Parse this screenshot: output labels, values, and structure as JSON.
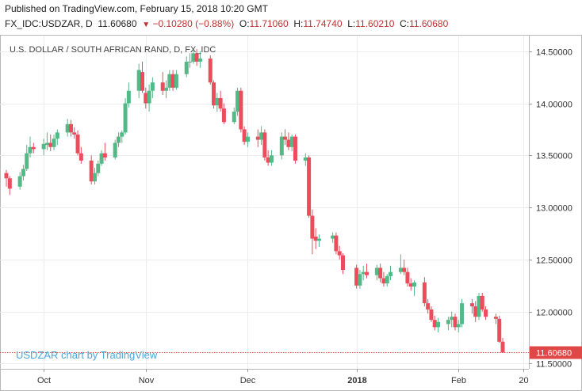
{
  "header": {
    "published": "Published on TradingView.com, February 15, 2018 10:20 GMT",
    "symbol": "FX_IDC:USDZAR, D",
    "last": "11.60680",
    "change": "−0.10280 (−0.88%)",
    "o_label": "O:",
    "o_value": "11.71060",
    "h_label": "H:",
    "h_value": "11.74740",
    "l_label": "L:",
    "l_value": "11.60210",
    "c_label": "C:",
    "c_value": "11.60680"
  },
  "colors": {
    "up": "#53b987",
    "down": "#eb4d5c",
    "last_tag": "#e04848",
    "watermark": "#4aa8d8"
  },
  "chart_data": {
    "type": "candlestick",
    "title": "U.S. DOLLAR / SOUTH AFRICAN RAND, D, FX_IDC",
    "watermark": "USDZAR chart by TradingView",
    "last_price_label": "11.60680",
    "last_price": 11.6068,
    "ylim": [
      11.45,
      14.65
    ],
    "yticks": [
      "14.50000",
      "14.00000",
      "13.50000",
      "13.00000",
      "12.50000",
      "12.00000",
      "11.50000"
    ],
    "ytick_values": [
      14.5,
      14.0,
      13.5,
      13.0,
      12.5,
      12.0,
      11.5
    ],
    "xticks": [
      {
        "label": "Oct",
        "bold": false,
        "date": "2017-10-02"
      },
      {
        "label": "Nov",
        "bold": false,
        "date": "2017-11-01"
      },
      {
        "label": "Dec",
        "bold": false,
        "date": "2017-12-01"
      },
      {
        "label": "2018",
        "bold": true,
        "date": "2018-01-02"
      },
      {
        "label": "Feb",
        "bold": false,
        "date": "2018-02-01"
      },
      {
        "label": "20",
        "bold": false,
        "date": "2018-02-20"
      }
    ],
    "candles": [
      {
        "date": "2017-09-21",
        "o": 13.33,
        "h": 13.36,
        "l": 13.2,
        "c": 13.28
      },
      {
        "date": "2017-09-22",
        "o": 13.28,
        "h": 13.3,
        "l": 13.12,
        "c": 13.18
      },
      {
        "date": "2017-09-25",
        "o": 13.2,
        "h": 13.34,
        "l": 13.17,
        "c": 13.3
      },
      {
        "date": "2017-09-26",
        "o": 13.3,
        "h": 13.41,
        "l": 13.26,
        "c": 13.37
      },
      {
        "date": "2017-09-27",
        "o": 13.37,
        "h": 13.6,
        "l": 13.35,
        "c": 13.52
      },
      {
        "date": "2017-09-28",
        "o": 13.52,
        "h": 13.68,
        "l": 13.48,
        "c": 13.58
      },
      {
        "date": "2017-09-29",
        "o": 13.58,
        "h": 13.62,
        "l": 13.52,
        "c": 13.56
      },
      {
        "date": "2017-10-02",
        "o": 13.56,
        "h": 13.66,
        "l": 13.5,
        "c": 13.61
      },
      {
        "date": "2017-10-03",
        "o": 13.6,
        "h": 13.72,
        "l": 13.55,
        "c": 13.62
      },
      {
        "date": "2017-10-04",
        "o": 13.62,
        "h": 13.7,
        "l": 13.54,
        "c": 13.58
      },
      {
        "date": "2017-10-05",
        "o": 13.58,
        "h": 13.7,
        "l": 13.55,
        "c": 13.66
      },
      {
        "date": "2017-10-06",
        "o": 13.66,
        "h": 13.75,
        "l": 13.6,
        "c": 13.72
      },
      {
        "date": "2017-10-09",
        "o": 13.72,
        "h": 13.85,
        "l": 13.68,
        "c": 13.8
      },
      {
        "date": "2017-10-10",
        "o": 13.8,
        "h": 13.84,
        "l": 13.68,
        "c": 13.72
      },
      {
        "date": "2017-10-11",
        "o": 13.72,
        "h": 13.77,
        "l": 13.66,
        "c": 13.7
      },
      {
        "date": "2017-10-12",
        "o": 13.7,
        "h": 13.74,
        "l": 13.5,
        "c": 13.52
      },
      {
        "date": "2017-10-13",
        "o": 13.52,
        "h": 13.58,
        "l": 13.42,
        "c": 13.45
      },
      {
        "date": "2017-10-16",
        "o": 13.45,
        "h": 13.5,
        "l": 13.22,
        "c": 13.25
      },
      {
        "date": "2017-10-17",
        "o": 13.25,
        "h": 13.38,
        "l": 13.22,
        "c": 13.33
      },
      {
        "date": "2017-10-18",
        "o": 13.33,
        "h": 13.45,
        "l": 13.3,
        "c": 13.42
      },
      {
        "date": "2017-10-19",
        "o": 13.42,
        "h": 13.55,
        "l": 13.4,
        "c": 13.52
      },
      {
        "date": "2017-10-20",
        "o": 13.52,
        "h": 13.62,
        "l": 13.45,
        "c": 13.48
      },
      {
        "date": "2017-10-23",
        "o": 13.48,
        "h": 13.65,
        "l": 13.46,
        "c": 13.62
      },
      {
        "date": "2017-10-24",
        "o": 13.62,
        "h": 13.72,
        "l": 13.58,
        "c": 13.68
      },
      {
        "date": "2017-10-25",
        "o": 13.68,
        "h": 13.74,
        "l": 13.62,
        "c": 13.72
      },
      {
        "date": "2017-10-26",
        "o": 13.72,
        "h": 14.05,
        "l": 13.7,
        "c": 14.0
      },
      {
        "date": "2017-10-27",
        "o": 14.0,
        "h": 14.2,
        "l": 13.96,
        "c": 14.12
      },
      {
        "date": "2017-10-30",
        "o": 14.12,
        "h": 14.38,
        "l": 14.05,
        "c": 14.32
      },
      {
        "date": "2017-10-31",
        "o": 14.3,
        "h": 14.4,
        "l": 14.1,
        "c": 14.12
      },
      {
        "date": "2017-11-01",
        "o": 14.1,
        "h": 14.15,
        "l": 13.95,
        "c": 14.0
      },
      {
        "date": "2017-11-02",
        "o": 14.0,
        "h": 14.18,
        "l": 13.92,
        "c": 14.12
      },
      {
        "date": "2017-11-03",
        "o": 14.12,
        "h": 14.25,
        "l": 14.05,
        "c": 14.2
      },
      {
        "date": "2017-11-06",
        "o": 14.2,
        "h": 14.3,
        "l": 14.08,
        "c": 14.12
      },
      {
        "date": "2017-11-07",
        "o": 14.12,
        "h": 14.22,
        "l": 14.05,
        "c": 14.15
      },
      {
        "date": "2017-11-08",
        "o": 14.15,
        "h": 14.32,
        "l": 14.12,
        "c": 14.28
      },
      {
        "date": "2017-11-09",
        "o": 14.28,
        "h": 14.32,
        "l": 14.12,
        "c": 14.15
      },
      {
        "date": "2017-11-10",
        "o": 14.15,
        "h": 14.32,
        "l": 14.13,
        "c": 14.28
      },
      {
        "date": "2017-11-13",
        "o": 14.28,
        "h": 14.45,
        "l": 14.25,
        "c": 14.4
      },
      {
        "date": "2017-11-14",
        "o": 14.4,
        "h": 14.48,
        "l": 14.34,
        "c": 14.4
      },
      {
        "date": "2017-11-15",
        "o": 14.4,
        "h": 14.52,
        "l": 14.38,
        "c": 14.48
      },
      {
        "date": "2017-11-16",
        "o": 14.48,
        "h": 14.52,
        "l": 14.36,
        "c": 14.4
      },
      {
        "date": "2017-11-17",
        "o": 14.4,
        "h": 14.5,
        "l": 14.34,
        "c": 14.43
      },
      {
        "date": "2017-11-20",
        "o": 14.43,
        "h": 14.46,
        "l": 14.18,
        "c": 14.2
      },
      {
        "date": "2017-11-21",
        "o": 14.2,
        "h": 14.22,
        "l": 13.95,
        "c": 13.98
      },
      {
        "date": "2017-11-22",
        "o": 13.98,
        "h": 14.1,
        "l": 13.92,
        "c": 14.05
      },
      {
        "date": "2017-11-23",
        "o": 14.05,
        "h": 14.12,
        "l": 13.92,
        "c": 13.95
      },
      {
        "date": "2017-11-24",
        "o": 13.95,
        "h": 14.0,
        "l": 13.8,
        "c": 13.82
      },
      {
        "date": "2017-11-27",
        "o": 13.82,
        "h": 13.96,
        "l": 13.8,
        "c": 13.92
      },
      {
        "date": "2017-11-28",
        "o": 13.92,
        "h": 14.15,
        "l": 13.88,
        "c": 14.12
      },
      {
        "date": "2017-11-29",
        "o": 14.12,
        "h": 14.15,
        "l": 13.72,
        "c": 13.75
      },
      {
        "date": "2017-11-30",
        "o": 13.75,
        "h": 13.78,
        "l": 13.6,
        "c": 13.63
      },
      {
        "date": "2017-12-01",
        "o": 13.63,
        "h": 13.72,
        "l": 13.58,
        "c": 13.68
      },
      {
        "date": "2017-12-04",
        "o": 13.68,
        "h": 13.75,
        "l": 13.58,
        "c": 13.65
      },
      {
        "date": "2017-12-05",
        "o": 13.65,
        "h": 13.78,
        "l": 13.6,
        "c": 13.72
      },
      {
        "date": "2017-12-06",
        "o": 13.72,
        "h": 13.75,
        "l": 13.45,
        "c": 13.48
      },
      {
        "date": "2017-12-07",
        "o": 13.48,
        "h": 13.55,
        "l": 13.4,
        "c": 13.43
      },
      {
        "date": "2017-12-08",
        "o": 13.43,
        "h": 13.55,
        "l": 13.4,
        "c": 13.5
      },
      {
        "date": "2017-12-11",
        "o": 13.5,
        "h": 13.72,
        "l": 13.46,
        "c": 13.68
      },
      {
        "date": "2017-12-12",
        "o": 13.68,
        "h": 13.75,
        "l": 13.6,
        "c": 13.65
      },
      {
        "date": "2017-12-13",
        "o": 13.65,
        "h": 13.72,
        "l": 13.55,
        "c": 13.58
      },
      {
        "date": "2017-12-14",
        "o": 13.58,
        "h": 13.7,
        "l": 13.54,
        "c": 13.68
      },
      {
        "date": "2017-12-15",
        "o": 13.68,
        "h": 13.7,
        "l": 13.42,
        "c": 13.45
      },
      {
        "date": "2017-12-18",
        "o": 13.45,
        "h": 13.52,
        "l": 13.4,
        "c": 13.48
      },
      {
        "date": "2017-12-19",
        "o": 13.48,
        "h": 13.5,
        "l": 12.9,
        "c": 12.92
      },
      {
        "date": "2017-12-20",
        "o": 12.92,
        "h": 12.98,
        "l": 12.55,
        "c": 12.7
      },
      {
        "date": "2017-12-21",
        "o": 12.72,
        "h": 12.8,
        "l": 12.6,
        "c": 12.68
      },
      {
        "date": "2017-12-22",
        "o": 12.68,
        "h": 12.74,
        "l": 12.62,
        "c": 12.7
      },
      {
        "date": "2017-12-26",
        "o": 12.7,
        "h": 12.76,
        "l": 12.66,
        "c": 12.73
      },
      {
        "date": "2017-12-27",
        "o": 12.73,
        "h": 12.76,
        "l": 12.55,
        "c": 12.58
      },
      {
        "date": "2017-12-28",
        "o": 12.58,
        "h": 12.63,
        "l": 12.5,
        "c": 12.54
      },
      {
        "date": "2017-12-29",
        "o": 12.54,
        "h": 12.56,
        "l": 12.36,
        "c": 12.4
      },
      {
        "date": "2018-01-02",
        "o": 12.42,
        "h": 12.45,
        "l": 12.22,
        "c": 12.25
      },
      {
        "date": "2018-01-03",
        "o": 12.25,
        "h": 12.4,
        "l": 12.22,
        "c": 12.36
      },
      {
        "date": "2018-01-04",
        "o": 12.36,
        "h": 12.44,
        "l": 12.3,
        "c": 12.38
      },
      {
        "date": "2018-01-05",
        "o": 12.38,
        "h": 12.46,
        "l": 12.32,
        "c": 12.35
      },
      {
        "date": "2018-01-08",
        "o": 12.35,
        "h": 12.45,
        "l": 12.3,
        "c": 12.42
      },
      {
        "date": "2018-01-09",
        "o": 12.42,
        "h": 12.46,
        "l": 12.28,
        "c": 12.32
      },
      {
        "date": "2018-01-10",
        "o": 12.32,
        "h": 12.38,
        "l": 12.24,
        "c": 12.27
      },
      {
        "date": "2018-01-11",
        "o": 12.27,
        "h": 12.36,
        "l": 12.24,
        "c": 12.34
      },
      {
        "date": "2018-01-12",
        "o": 12.34,
        "h": 12.44,
        "l": 12.3,
        "c": 12.38
      },
      {
        "date": "2018-01-15",
        "o": 12.38,
        "h": 12.55,
        "l": 12.36,
        "c": 12.42
      },
      {
        "date": "2018-01-16",
        "o": 12.42,
        "h": 12.5,
        "l": 12.35,
        "c": 12.38
      },
      {
        "date": "2018-01-17",
        "o": 12.38,
        "h": 12.42,
        "l": 12.24,
        "c": 12.27
      },
      {
        "date": "2018-01-18",
        "o": 12.27,
        "h": 12.32,
        "l": 12.2,
        "c": 12.24
      },
      {
        "date": "2018-01-19",
        "o": 12.24,
        "h": 12.3,
        "l": 12.15,
        "c": 12.28
      },
      {
        "date": "2018-01-22",
        "o": 12.28,
        "h": 12.33,
        "l": 12.05,
        "c": 12.08
      },
      {
        "date": "2018-01-23",
        "o": 12.08,
        "h": 12.12,
        "l": 11.98,
        "c": 12.02
      },
      {
        "date": "2018-01-24",
        "o": 12.02,
        "h": 12.05,
        "l": 11.9,
        "c": 11.92
      },
      {
        "date": "2018-01-25",
        "o": 11.92,
        "h": 11.96,
        "l": 11.82,
        "c": 11.85
      },
      {
        "date": "2018-01-26",
        "o": 11.85,
        "h": 11.94,
        "l": 11.8,
        "c": 11.9
      },
      {
        "date": "2018-01-29",
        "o": 11.88,
        "h": 11.95,
        "l": 11.82,
        "c": 11.92
      },
      {
        "date": "2018-01-30",
        "o": 11.92,
        "h": 12.0,
        "l": 11.85,
        "c": 11.95
      },
      {
        "date": "2018-01-31",
        "o": 11.95,
        "h": 11.98,
        "l": 11.82,
        "c": 11.85
      },
      {
        "date": "2018-02-01",
        "o": 11.85,
        "h": 11.92,
        "l": 11.8,
        "c": 11.88
      },
      {
        "date": "2018-02-02",
        "o": 11.88,
        "h": 12.12,
        "l": 11.85,
        "c": 12.08
      },
      {
        "date": "2018-02-05",
        "o": 12.08,
        "h": 12.12,
        "l": 11.98,
        "c": 12.05
      },
      {
        "date": "2018-02-06",
        "o": 12.05,
        "h": 12.1,
        "l": 11.9,
        "c": 11.95
      },
      {
        "date": "2018-02-07",
        "o": 11.95,
        "h": 12.18,
        "l": 11.92,
        "c": 12.15
      },
      {
        "date": "2018-02-08",
        "o": 12.15,
        "h": 12.18,
        "l": 12.0,
        "c": 12.02
      },
      {
        "date": "2018-02-09",
        "o": 12.02,
        "h": 12.05,
        "l": 11.92,
        "c": 11.95
      },
      {
        "date": "2018-02-12",
        "o": 11.95,
        "h": 11.98,
        "l": 11.88,
        "c": 11.93
      },
      {
        "date": "2018-02-13",
        "o": 11.93,
        "h": 11.96,
        "l": 11.7,
        "c": 11.71
      },
      {
        "date": "2018-02-14",
        "o": 11.7106,
        "h": 11.7474,
        "l": 11.6021,
        "c": 11.6068
      }
    ]
  }
}
